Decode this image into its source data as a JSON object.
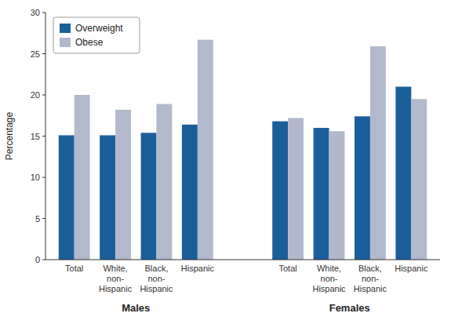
{
  "chart_data": {
    "type": "bar",
    "categories": [
      "Total",
      "White,\nnon-\nHispanic",
      "Black,\nnon-\nHispanic",
      "Hispanic",
      "Total",
      "White,\nnon-\nHispanic",
      "Black,\nnon-\nHispanic",
      "Hispanic"
    ],
    "series": [
      {
        "name": "Overweight",
        "color": "#1a5f9a",
        "values": [
          15.1,
          15.1,
          15.4,
          16.4,
          16.8,
          16.0,
          17.4,
          21.0
        ]
      },
      {
        "name": "Obese",
        "color": "#b3b9cc",
        "values": [
          20.0,
          18.2,
          18.9,
          26.7,
          17.2,
          15.6,
          25.9,
          19.5
        ]
      }
    ],
    "annotations": [
      "Males",
      "Females"
    ],
    "y_label": "Percentage",
    "ylim": [
      0,
      30
    ],
    "yticks": [
      0,
      5,
      10,
      15,
      20,
      25,
      30
    ],
    "legend": "top-left",
    "grid": false
  }
}
